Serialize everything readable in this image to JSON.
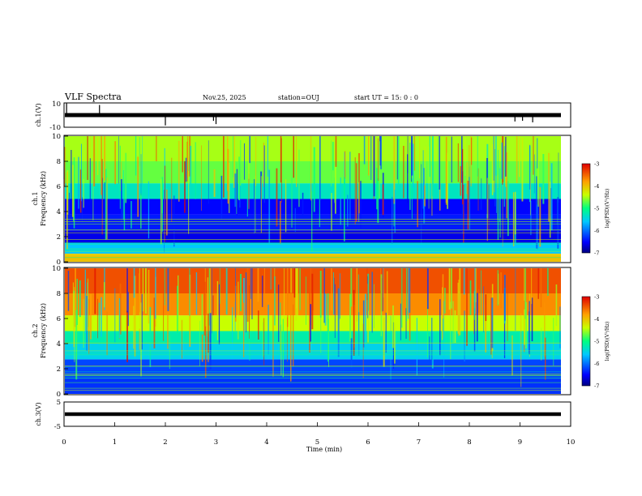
{
  "header": {
    "title": "VLF Spectra",
    "date": "Nov.25, 2025",
    "station": "station=OUJ",
    "start": "start UT =  15: 0  : 0"
  },
  "chart_data": [
    {
      "type": "line",
      "panel": "ch1-waveform",
      "ylabel": "ch.1(V)",
      "ylim": [
        -10,
        10
      ],
      "yticks": [
        "10",
        "-10"
      ],
      "xlim": [
        0,
        10
      ],
      "baseline_v": 0,
      "spikes_min": [
        0.05,
        0.7,
        2.0,
        2.95,
        3.0,
        8.9,
        9.05,
        9.25
      ]
    },
    {
      "type": "heatmap",
      "panel": "ch1-spectrogram",
      "ylabel": "ch.1\nFrequency (kHz)",
      "ylabel_lines": [
        "ch.1",
        "Frequency (kHz)"
      ],
      "ylim": [
        0,
        10
      ],
      "yticks": [
        "0",
        "2",
        "4",
        "6",
        "8",
        "10"
      ],
      "xlim": [
        0,
        10
      ],
      "colorbar": {
        "label": "log(PSD)(V²/Hz)",
        "range": [
          -7,
          -3
        ],
        "ticks": [
          "-3",
          "-4",
          "-5",
          "-6",
          "-7"
        ]
      },
      "band_profile": [
        {
          "f_khz": 0.3,
          "log_psd": -4.0
        },
        {
          "f_khz": 1.0,
          "log_psd": -5.6
        },
        {
          "f_khz": 2.0,
          "log_psd": -6.6
        },
        {
          "f_khz": 3.0,
          "log_psd": -6.4
        },
        {
          "f_khz": 4.5,
          "log_psd": -6.5
        },
        {
          "f_khz": 5.5,
          "log_psd": -5.3
        },
        {
          "f_khz": 7.0,
          "log_psd": -4.7
        },
        {
          "f_khz": 9.0,
          "log_psd": -4.5
        }
      ]
    },
    {
      "type": "heatmap",
      "panel": "ch2-spectrogram",
      "ylabel": "ch.2\nFrequency (kHz)",
      "ylabel_lines": [
        "ch.2",
        "Frequency (kHz)"
      ],
      "ylim": [
        0,
        10
      ],
      "yticks": [
        "0",
        "2",
        "4",
        "6",
        "8",
        "10"
      ],
      "xlim": [
        0,
        10
      ],
      "colorbar": {
        "label": "log(PSD)(V²/Hz)",
        "range": [
          -7,
          -3
        ],
        "ticks": [
          "-3",
          "-4",
          "-5",
          "-6",
          "-7"
        ]
      },
      "band_profile": [
        {
          "f_khz": 0.5,
          "log_psd": -6.3
        },
        {
          "f_khz": 2.0,
          "log_psd": -6.2
        },
        {
          "f_khz": 3.5,
          "log_psd": -5.5
        },
        {
          "f_khz": 4.5,
          "log_psd": -5.2
        },
        {
          "f_khz": 5.5,
          "log_psd": -4.4
        },
        {
          "f_khz": 7.0,
          "log_psd": -3.7
        },
        {
          "f_khz": 9.0,
          "log_psd": -3.4
        }
      ]
    },
    {
      "type": "line",
      "panel": "ch3-waveform",
      "ylabel": "ch.3(V)",
      "ylim": [
        -5,
        5
      ],
      "yticks": [
        "5",
        "-5"
      ],
      "xlim": [
        0,
        10
      ],
      "constant_v": -1.5
    }
  ],
  "xaxis": {
    "label": "Time (min)",
    "ticks": [
      "0",
      "1",
      "2",
      "3",
      "4",
      "5",
      "6",
      "7",
      "8",
      "9",
      "10"
    ]
  }
}
